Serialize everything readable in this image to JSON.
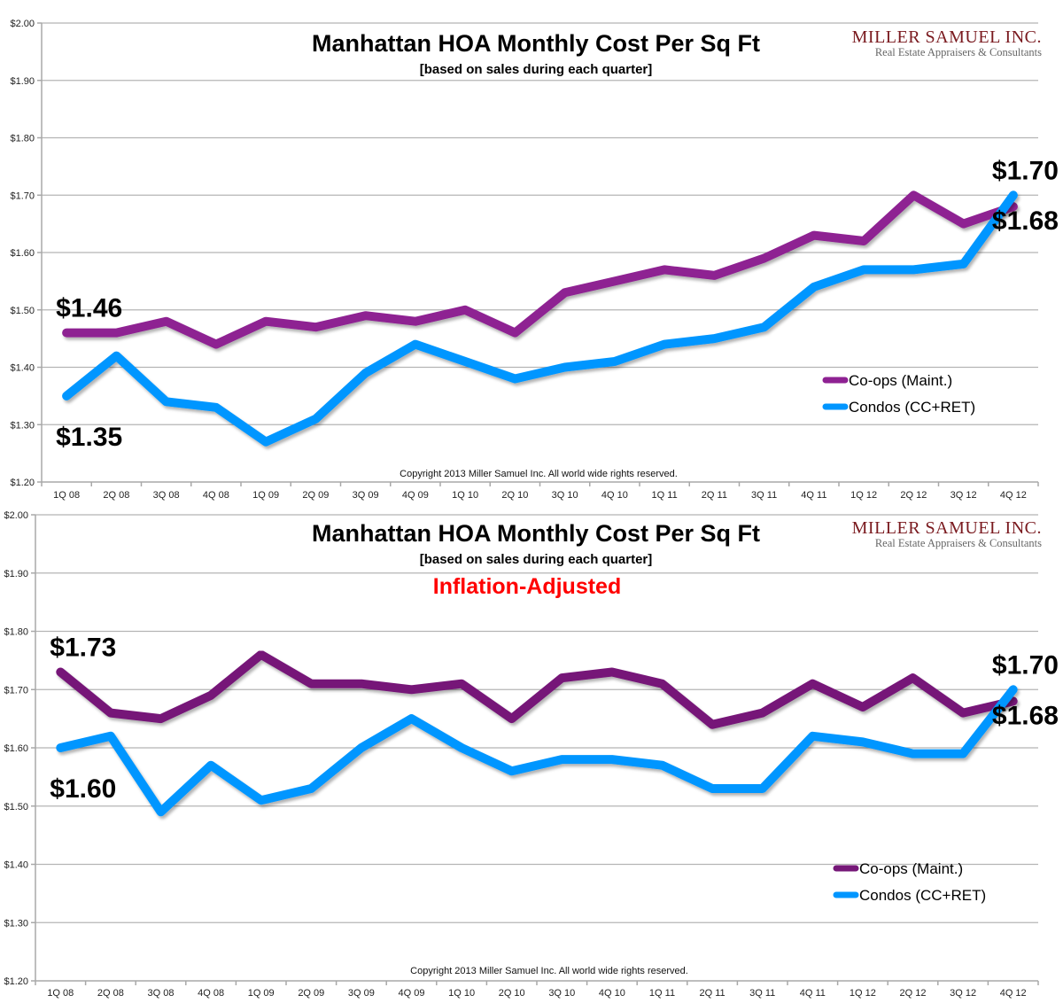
{
  "brand": {
    "name": "Miller Samuel Inc.",
    "tagline": "Real Estate Appraisers & Consultants",
    "color": "#7a1a1f"
  },
  "chart_data": [
    {
      "type": "line",
      "title": "Manhattan HOA Monthly Cost Per Sq Ft",
      "subtitle": "[based on sales during each quarter]",
      "note": "",
      "copyright": "Copyright 2013 Miller Samuel Inc.  All world wide rights reserved.",
      "xlabel": "",
      "ylabel": "",
      "ylim": [
        1.2,
        2.0
      ],
      "yticks": [
        "$1.20",
        "$1.30",
        "$1.40",
        "$1.50",
        "$1.60",
        "$1.70",
        "$1.80",
        "$1.90",
        "$2.00"
      ],
      "grid": true,
      "legend_position": "lower-right",
      "categories": [
        "1Q 08",
        "2Q 08",
        "3Q 08",
        "4Q 08",
        "1Q 09",
        "2Q 09",
        "3Q 09",
        "4Q 09",
        "1Q 10",
        "2Q 10",
        "3Q 10",
        "4Q 10",
        "1Q 11",
        "2Q 11",
        "3Q 11",
        "4Q 11",
        "1Q 12",
        "2Q 12",
        "3Q 12",
        "4Q 12"
      ],
      "series": [
        {
          "name": "Co-ops (Maint.)",
          "color": "#8e2192",
          "values": [
            1.46,
            1.46,
            1.48,
            1.44,
            1.48,
            1.47,
            1.49,
            1.48,
            1.5,
            1.46,
            1.53,
            1.55,
            1.57,
            1.56,
            1.59,
            1.63,
            1.62,
            1.7,
            1.65,
            1.68
          ]
        },
        {
          "name": "Condos (CC+RET)",
          "color": "#0096ff",
          "values": [
            1.35,
            1.42,
            1.34,
            1.33,
            1.27,
            1.31,
            1.39,
            1.44,
            1.41,
            1.38,
            1.4,
            1.41,
            1.44,
            1.45,
            1.47,
            1.54,
            1.57,
            1.57,
            1.58,
            1.7
          ]
        }
      ],
      "annotations": [
        {
          "text": "$1.46",
          "series": 0,
          "index": 0,
          "place": "above"
        },
        {
          "text": "$1.35",
          "series": 1,
          "index": 0,
          "place": "below"
        },
        {
          "text": "$1.70",
          "series": 1,
          "index": 19,
          "place": "above"
        },
        {
          "text": "$1.68",
          "series": 0,
          "index": 19,
          "place": "below"
        }
      ]
    },
    {
      "type": "line",
      "title": "Manhattan HOA Monthly Cost Per Sq Ft",
      "subtitle": "[based on sales during each quarter]",
      "note": "Inflation-Adjusted",
      "copyright": "Copyright 2013 Miller Samuel Inc.  All world wide rights reserved.",
      "xlabel": "",
      "ylabel": "",
      "ylim": [
        1.2,
        2.0
      ],
      "yticks": [
        "$1.20",
        "$1.30",
        "$1.40",
        "$1.50",
        "$1.60",
        "$1.70",
        "$1.80",
        "$1.90",
        "$2.00"
      ],
      "grid": true,
      "legend_position": "lower-right",
      "categories": [
        "1Q 08",
        "2Q 08",
        "3Q 08",
        "4Q 08",
        "1Q 09",
        "2Q 09",
        "3Q 09",
        "4Q 09",
        "1Q 10",
        "2Q 10",
        "3Q 10",
        "4Q 10",
        "1Q 11",
        "2Q 11",
        "3Q 11",
        "4Q 11",
        "1Q 12",
        "2Q 12",
        "3Q 12",
        "4Q 12"
      ],
      "series": [
        {
          "name": "Co-ops (Maint.)",
          "color": "#761878",
          "values": [
            1.73,
            1.66,
            1.65,
            1.69,
            1.76,
            1.71,
            1.71,
            1.7,
            1.71,
            1.65,
            1.72,
            1.73,
            1.71,
            1.64,
            1.66,
            1.71,
            1.67,
            1.72,
            1.66,
            1.68
          ]
        },
        {
          "name": "Condos (CC+RET)",
          "color": "#0096ff",
          "values": [
            1.6,
            1.62,
            1.49,
            1.57,
            1.51,
            1.53,
            1.6,
            1.65,
            1.6,
            1.56,
            1.58,
            1.58,
            1.57,
            1.53,
            1.53,
            1.62,
            1.61,
            1.59,
            1.59,
            1.7
          ]
        }
      ],
      "annotations": [
        {
          "text": "$1.73",
          "series": 0,
          "index": 0,
          "place": "above"
        },
        {
          "text": "$1.60",
          "series": 1,
          "index": 0,
          "place": "below"
        },
        {
          "text": "$1.70",
          "series": 1,
          "index": 19,
          "place": "above"
        },
        {
          "text": "$1.68",
          "series": 0,
          "index": 19,
          "place": "below"
        }
      ]
    }
  ]
}
